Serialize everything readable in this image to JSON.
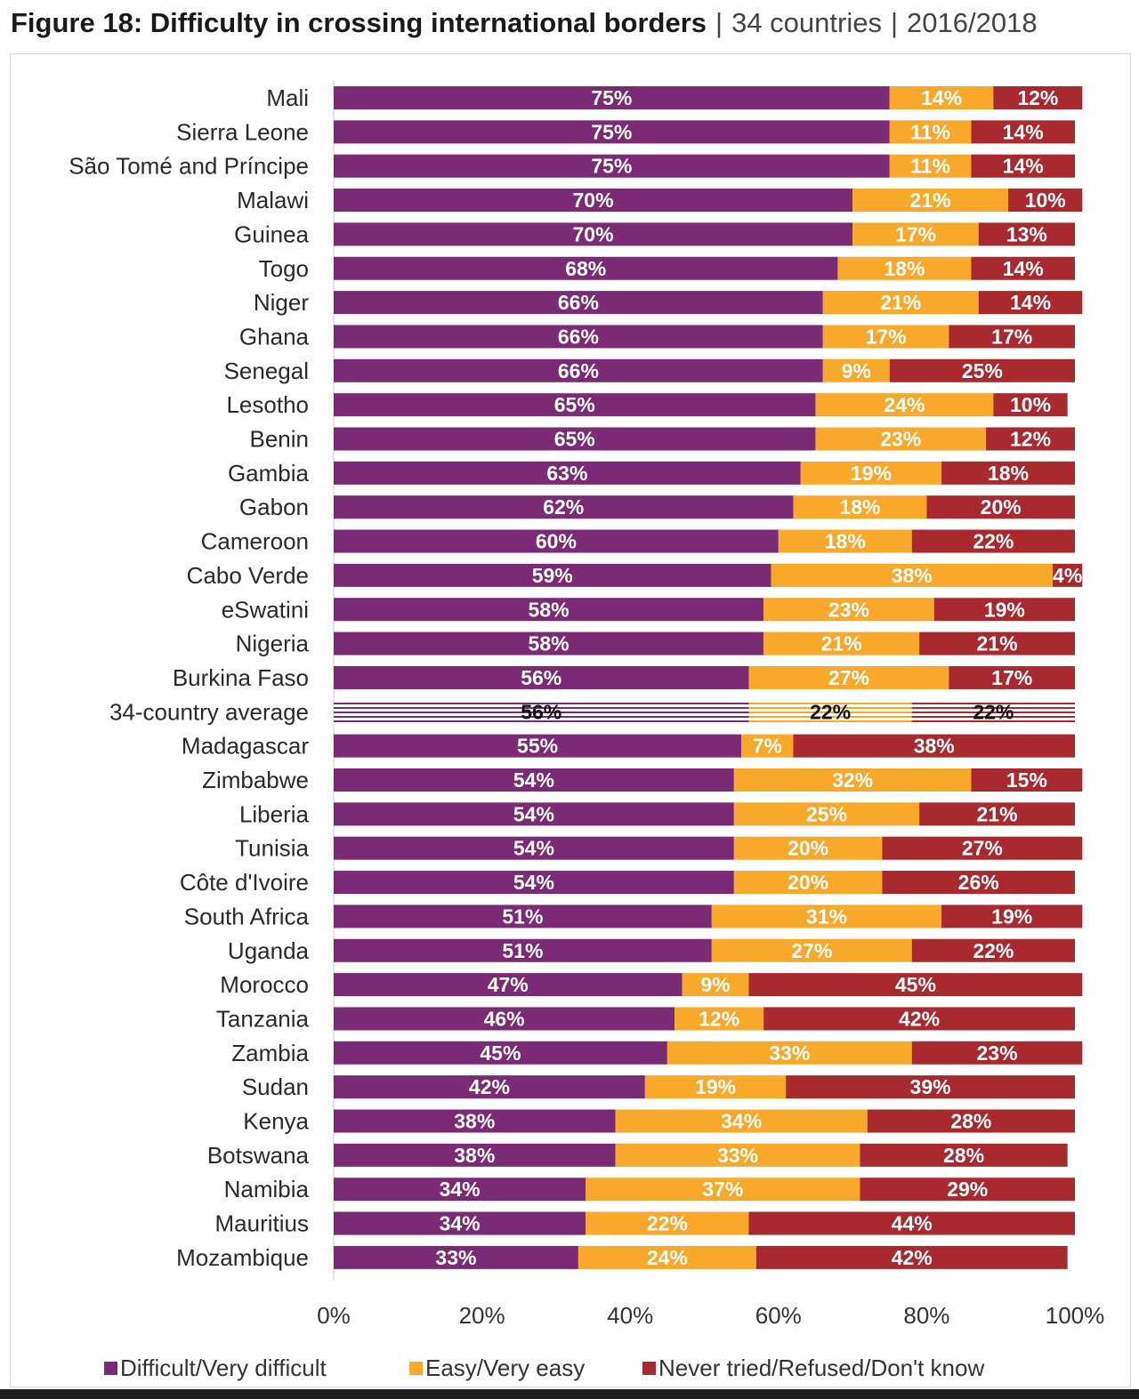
{
  "header": {
    "title": "Figure 18: Difficulty in crossing international borders",
    "separator": "|",
    "countries": "34 countries",
    "years": "2016/2018"
  },
  "colors": {
    "difficult": "#7B2A75",
    "easy": "#F8A92B",
    "never": "#A8292E",
    "axis": "#c8c8c8"
  },
  "chart_data": {
    "type": "bar",
    "orientation": "horizontal",
    "stacked": true,
    "title": "Figure 18: Difficulty in crossing international borders",
    "xlabel": "",
    "ylabel": "",
    "xlim": [
      0,
      100
    ],
    "x_ticks": [
      "0%",
      "20%",
      "40%",
      "60%",
      "80%",
      "100%"
    ],
    "grid": false,
    "legend_position": "bottom",
    "categories": [
      "Mali",
      "Sierra Leone",
      "São Tomé and Príncipe",
      "Malawi",
      "Guinea",
      "Togo",
      "Niger",
      "Ghana",
      "Senegal",
      "Lesotho",
      "Benin",
      "Gambia",
      "Gabon",
      "Cameroon",
      "Cabo Verde",
      "eSwatini",
      "Nigeria",
      "Burkina Faso",
      "34-country average",
      "Madagascar",
      "Zimbabwe",
      "Liberia",
      "Tunisia",
      "Côte d'Ivoire",
      "South Africa",
      "Uganda",
      "Morocco",
      "Tanzania",
      "Zambia",
      "Sudan",
      "Kenya",
      "Botswana",
      "Namibia",
      "Mauritius",
      "Mozambique"
    ],
    "highlight_category": "34-country average",
    "series": [
      {
        "name": "Difficult/Very difficult",
        "color": "#7B2A75",
        "values": [
          75,
          75,
          75,
          70,
          70,
          68,
          66,
          66,
          66,
          65,
          65,
          63,
          62,
          60,
          59,
          58,
          58,
          56,
          56,
          55,
          54,
          54,
          54,
          54,
          51,
          51,
          47,
          46,
          45,
          42,
          38,
          38,
          34,
          34,
          33
        ]
      },
      {
        "name": "Easy/Very easy",
        "color": "#F8A92B",
        "values": [
          14,
          11,
          11,
          21,
          17,
          18,
          21,
          17,
          9,
          24,
          23,
          19,
          18,
          18,
          38,
          23,
          21,
          27,
          22,
          7,
          32,
          25,
          20,
          20,
          31,
          27,
          9,
          12,
          33,
          19,
          34,
          33,
          37,
          22,
          24
        ]
      },
      {
        "name": "Never tried/Refused/Don't know",
        "color": "#A8292E",
        "values": [
          12,
          14,
          14,
          10,
          13,
          14,
          14,
          17,
          25,
          10,
          12,
          18,
          20,
          22,
          4,
          19,
          21,
          17,
          22,
          38,
          15,
          21,
          27,
          26,
          19,
          22,
          45,
          42,
          23,
          39,
          28,
          28,
          29,
          44,
          42
        ]
      }
    ]
  }
}
